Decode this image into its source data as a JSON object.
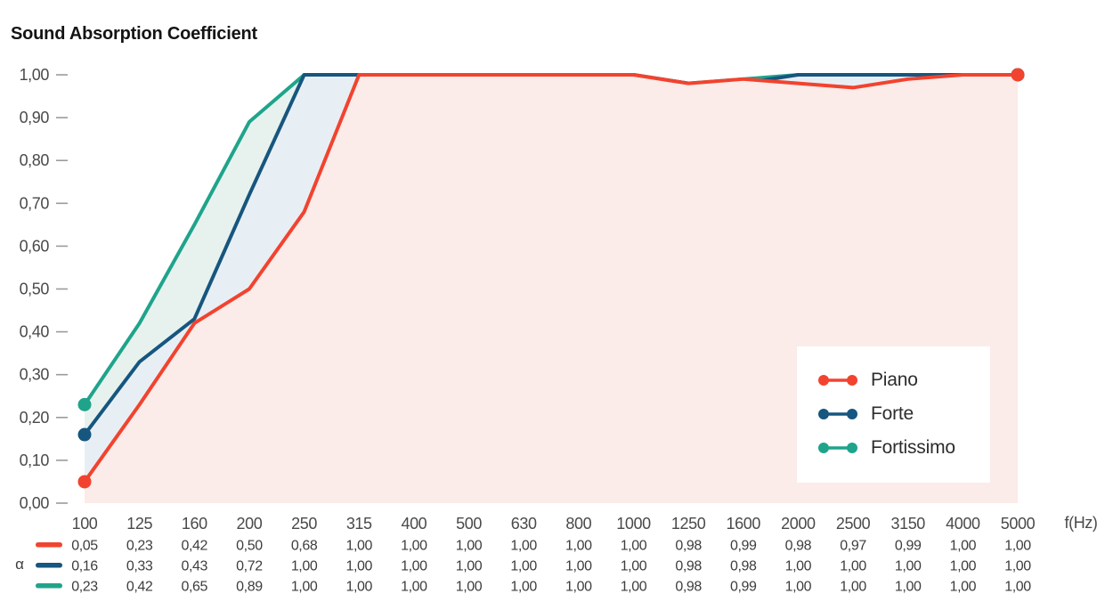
{
  "title": "Sound Absorption Coefficient",
  "chart_data": {
    "type": "area",
    "title": "Sound Absorption Coefficient",
    "x_unit_label": "f(Hz)",
    "alpha_symbol": "α",
    "decimal_separator": ",",
    "categories": [
      "100",
      "125",
      "160",
      "200",
      "250",
      "315",
      "400",
      "500",
      "630",
      "800",
      "1000",
      "1250",
      "1600",
      "2000",
      "2500",
      "3150",
      "4000",
      "5000"
    ],
    "series": [
      {
        "name": "Piano",
        "color": "#F2432F",
        "fill": "#FBEBE9",
        "values": [
          0.05,
          0.23,
          0.42,
          0.5,
          0.68,
          1.0,
          1.0,
          1.0,
          1.0,
          1.0,
          1.0,
          0.98,
          0.99,
          0.98,
          0.97,
          0.99,
          1.0,
          1.0
        ]
      },
      {
        "name": "Forte",
        "color": "#16567F",
        "fill": "#E8EFF4",
        "values": [
          0.16,
          0.33,
          0.43,
          0.72,
          1.0,
          1.0,
          1.0,
          1.0,
          1.0,
          1.0,
          1.0,
          0.98,
          0.98,
          1.0,
          1.0,
          1.0,
          1.0,
          1.0
        ]
      },
      {
        "name": "Fortissimo",
        "color": "#1FA48B",
        "fill": "#E7F2EF",
        "values": [
          0.23,
          0.42,
          0.65,
          0.89,
          1.0,
          1.0,
          1.0,
          1.0,
          1.0,
          1.0,
          1.0,
          0.98,
          0.99,
          1.0,
          1.0,
          1.0,
          1.0,
          1.0
        ]
      }
    ],
    "ylim": [
      0,
      1
    ],
    "ytick_step": 0.1,
    "grid": false,
    "legend_position": "right-inside",
    "tick_color": "#9B9B9B",
    "axis_text_color": "#4A4A4A"
  }
}
